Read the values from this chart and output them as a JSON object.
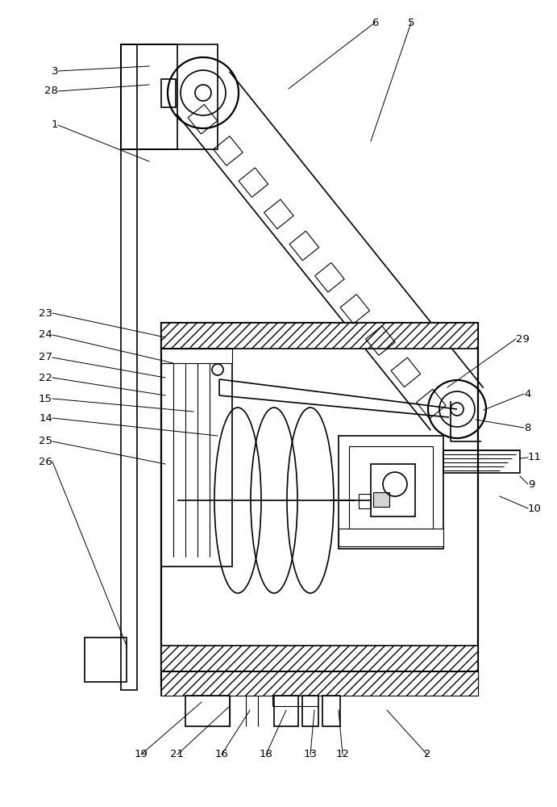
{
  "bg_color": "#ffffff",
  "line_color": "#000000",
  "figsize": [
    6.91,
    10.0
  ],
  "dpi": 100
}
